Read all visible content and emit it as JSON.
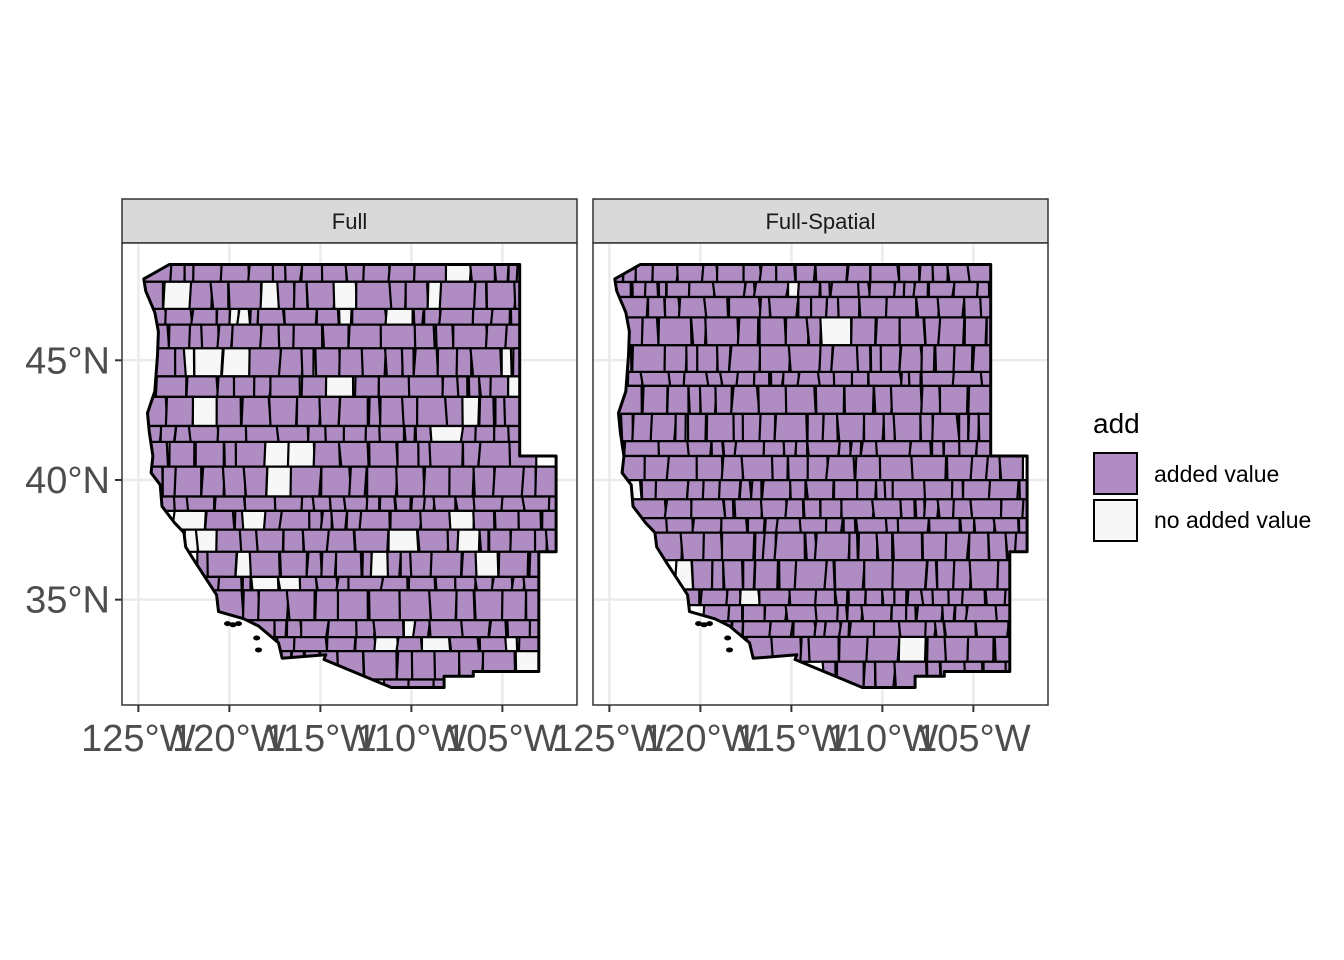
{
  "colors": {
    "added": "#af8dc3",
    "not_added": "#f7f7f7",
    "strip_bg": "#d9d9d9",
    "grid": "#ebebeb"
  },
  "panels": [
    {
      "label": "Full",
      "seed": 17,
      "white_fraction": 0.13
    },
    {
      "label": "Full-Spatial",
      "seed": 53,
      "white_fraction": 0.035
    }
  ],
  "axes": {
    "x_ticks": [
      "125°W",
      "120°W",
      "115°W",
      "110°W",
      "105°W"
    ],
    "x_values": [
      -125,
      -120,
      -115,
      -110,
      -105
    ],
    "y_ticks": [
      "45°N",
      "40°N",
      "35°N"
    ],
    "y_values": [
      45,
      40,
      35
    ],
    "xlim": [
      -125.9,
      -100.9
    ],
    "ylim": [
      30.6,
      49.9
    ]
  },
  "legend": {
    "title": "add",
    "items": [
      {
        "label": "added value",
        "color": "#af8dc3"
      },
      {
        "label": "no added value",
        "color": "#f7f7f7"
      }
    ]
  }
}
